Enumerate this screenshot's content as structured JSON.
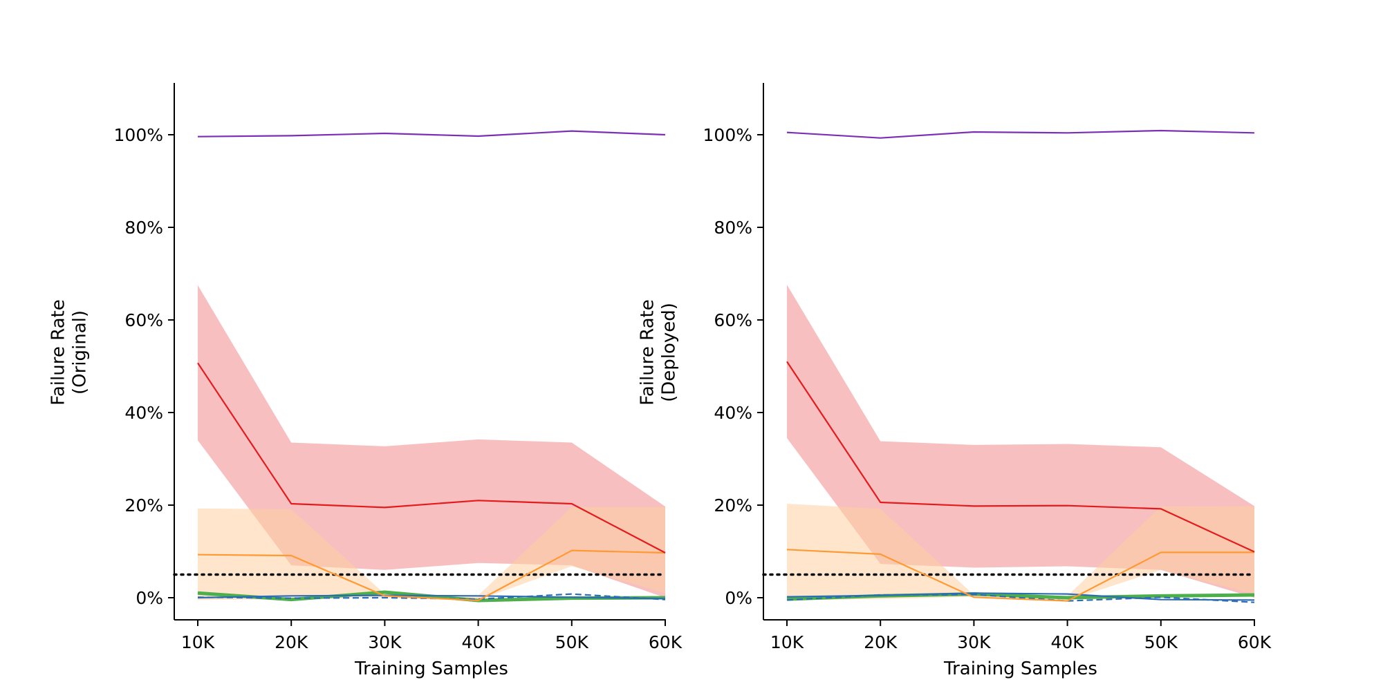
{
  "chart_data": [
    {
      "type": "line",
      "xlabel": "Training Samples",
      "ylabel": [
        "Failure Rate",
        "(Original)"
      ],
      "x": [
        "10K",
        "20K",
        "30K",
        "40K",
        "50K",
        "60K"
      ],
      "xlim": [
        10,
        60
      ],
      "ylim": [
        -5,
        111
      ],
      "yticks": [
        "0%",
        "20%",
        "40%",
        "60%",
        "80%",
        "100%"
      ],
      "ytick_values": [
        0,
        20,
        40,
        60,
        80,
        100
      ],
      "grid": false,
      "reference_line": {
        "y": 5,
        "style": "dotted",
        "color": "#000000"
      },
      "series": [
        {
          "color": "#7b2fb5",
          "style": "solid",
          "width": 2.2,
          "values": [
            99.6,
            99.8,
            100.3,
            99.7,
            100.8,
            100.0
          ]
        },
        {
          "color": "#e41a1c",
          "style": "solid",
          "width": 2.2,
          "values": [
            50.7,
            20.3,
            19.5,
            21.0,
            20.3,
            9.7
          ],
          "band": {
            "color": "#f08080",
            "opacity": 0.5,
            "lower": [
              34.0,
              7.0,
              6.0,
              7.5,
              7.0,
              0.0
            ],
            "upper": [
              67.5,
              33.5,
              32.7,
              34.2,
              33.5,
              19.7
            ]
          }
        },
        {
          "color": "#ff9933",
          "style": "solid",
          "width": 2.2,
          "values": [
            9.3,
            9.1,
            0.4,
            -0.6,
            10.2,
            9.7
          ],
          "band": {
            "color": "#fdd0a2",
            "opacity": 0.55,
            "lower": [
              -0.5,
              -0.3,
              0.0,
              -0.5,
              6.8,
              1.0
            ],
            "upper": [
              19.3,
              19.1,
              0.8,
              0.5,
              19.6,
              19.6
            ]
          }
        },
        {
          "color": "#4daf4a",
          "style": "solid",
          "width": 5,
          "values": [
            1.0,
            -0.4,
            1.2,
            -0.6,
            -0.1,
            0.0
          ]
        },
        {
          "color": "#2b6cb5",
          "style": "solid",
          "width": 2.2,
          "values": [
            0.0,
            0.4,
            0.5,
            0.4,
            0.1,
            -0.2
          ]
        },
        {
          "color": "#2b6cb5",
          "style": "dashed",
          "width": 2.2,
          "values": [
            0.1,
            -0.1,
            0.0,
            -0.3,
            0.8,
            -0.4
          ]
        }
      ]
    },
    {
      "type": "line",
      "xlabel": "Training Samples",
      "ylabel": [
        "Failure Rate",
        "(Deployed)"
      ],
      "x": [
        "10K",
        "20K",
        "30K",
        "40K",
        "50K",
        "60K"
      ],
      "xlim": [
        10,
        60
      ],
      "ylim": [
        -5,
        111
      ],
      "yticks": [
        "0%",
        "20%",
        "40%",
        "60%",
        "80%",
        "100%"
      ],
      "ytick_values": [
        0,
        20,
        40,
        60,
        80,
        100
      ],
      "grid": false,
      "reference_line": {
        "y": 5,
        "style": "dotted",
        "color": "#000000"
      },
      "series": [
        {
          "color": "#7b2fb5",
          "style": "solid",
          "width": 2.2,
          "values": [
            100.5,
            99.3,
            100.6,
            100.4,
            100.9,
            100.4
          ]
        },
        {
          "color": "#e41a1c",
          "style": "solid",
          "width": 2.2,
          "values": [
            51.0,
            20.6,
            19.8,
            19.9,
            19.2,
            9.9
          ],
          "band": {
            "color": "#f08080",
            "opacity": 0.5,
            "lower": [
              34.5,
              7.3,
              6.5,
              6.8,
              6.0,
              0.0
            ],
            "upper": [
              67.6,
              33.8,
              33.0,
              33.2,
              32.5,
              19.8
            ]
          }
        },
        {
          "color": "#ff9933",
          "style": "solid",
          "width": 2.2,
          "values": [
            10.4,
            9.4,
            0.1,
            -0.7,
            9.8,
            9.8
          ],
          "band": {
            "color": "#fdd0a2",
            "opacity": 0.55,
            "lower": [
              -0.5,
              -0.3,
              0.2,
              -0.6,
              6.0,
              0.8
            ],
            "upper": [
              20.3,
              19.2,
              0.6,
              0.4,
              19.7,
              19.8
            ]
          }
        },
        {
          "color": "#4daf4a",
          "style": "solid",
          "width": 5,
          "values": [
            -0.3,
            0.4,
            0.8,
            0.0,
            0.4,
            0.6
          ]
        },
        {
          "color": "#2b6cb5",
          "style": "solid",
          "width": 2.2,
          "values": [
            0.2,
            0.5,
            1.0,
            0.8,
            -0.4,
            -0.5
          ]
        },
        {
          "color": "#2b6cb5",
          "style": "dashed",
          "width": 2.2,
          "values": [
            -0.5,
            0.6,
            0.7,
            -0.7,
            0.1,
            -1.0
          ]
        }
      ]
    }
  ]
}
